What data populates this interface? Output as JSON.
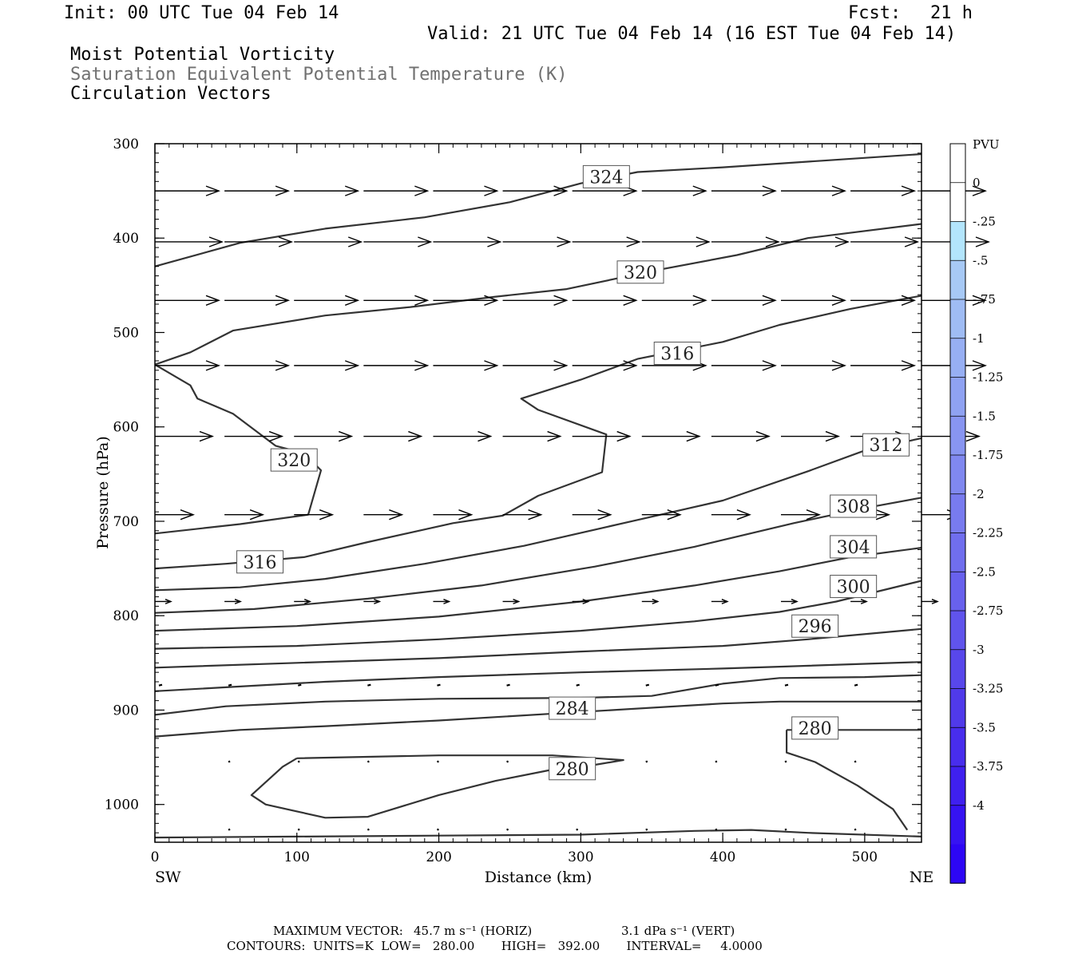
{
  "header": {
    "init": "Init: 00 UTC Tue 04 Feb 14",
    "fcst_label": "Fcst:",
    "fcst_value": "21 h",
    "valid": "Valid: 21 UTC Tue 04 Feb 14 (16 EST Tue 04 Feb 14)",
    "fields": [
      "Moist Potential Vorticity",
      "Saturation Equivalent Potential Temperature (K)",
      "Circulation Vectors"
    ]
  },
  "footer": {
    "max_vector_label": "MAXIMUM VECTOR:",
    "max_vector_horiz": "45.7 m s⁻¹ (HORIZ)",
    "max_vector_vert": "3.1 dPa s⁻¹ (VERT)",
    "contours_line": "CONTOURS:  UNITS=K  LOW=   280.00       HIGH=   392.00       INTERVAL=     4.0000"
  },
  "colors": {
    "contour": "#333333",
    "frame": "#000000",
    "subtitle_grey": "#707070",
    "colorbar": [
      "#ffffff",
      "#ffffff",
      "#b3e5fc",
      "#a7c9f5",
      "#9fbcf4",
      "#97aff3",
      "#8fa2f2",
      "#8895f1",
      "#8088f0",
      "#787bef",
      "#706eee",
      "#6861ed",
      "#6054ec",
      "#5847eb",
      "#503aea",
      "#482ded",
      "#3f20ef",
      "#3613f2",
      "#2d06f5"
    ]
  },
  "chart_data": {
    "type": "contour",
    "xlabel": "Distance (km)",
    "ylabel": "Pressure (hPa)",
    "xlim": [
      0,
      540
    ],
    "ylim": [
      1040,
      300
    ],
    "x_ticks": [
      0,
      100,
      200,
      300,
      400,
      500
    ],
    "y_ticks": [
      300,
      400,
      500,
      600,
      700,
      800,
      900,
      1000
    ],
    "x_end_labels": {
      "left": "SW",
      "right": "NE"
    },
    "colorbar": {
      "title": "PVU",
      "ticks": [
        "0",
        "-.25",
        "-.5",
        "-.75",
        "-1",
        "-1.25",
        "-1.5",
        "-1.75",
        "-2",
        "-2.25",
        "-2.5",
        "-2.75",
        "-3",
        "-3.25",
        "-3.5",
        "-3.75",
        "-4"
      ]
    },
    "contour_labels": [
      {
        "text": "324",
        "x": 318,
        "p": 335
      },
      {
        "text": "320",
        "x": 342,
        "p": 436
      },
      {
        "text": "316",
        "x": 368,
        "p": 522
      },
      {
        "text": "320",
        "x": 98,
        "p": 635
      },
      {
        "text": "312",
        "x": 515,
        "p": 619
      },
      {
        "text": "308",
        "x": 492,
        "p": 684
      },
      {
        "text": "316",
        "x": 74,
        "p": 743
      },
      {
        "text": "304",
        "x": 492,
        "p": 727
      },
      {
        "text": "300",
        "x": 492,
        "p": 769
      },
      {
        "text": "296",
        "x": 465,
        "p": 811
      },
      {
        "text": "284",
        "x": 294,
        "p": 898
      },
      {
        "text": "280",
        "x": 465,
        "p": 919
      },
      {
        "text": "280",
        "x": 294,
        "p": 962
      }
    ],
    "contours": [
      {
        "theta": 324,
        "points": [
          [
            0,
            430
          ],
          [
            60,
            405
          ],
          [
            120,
            390
          ],
          [
            190,
            378
          ],
          [
            250,
            362
          ],
          [
            300,
            342
          ],
          [
            340,
            330
          ],
          [
            400,
            325
          ],
          [
            470,
            318
          ],
          [
            540,
            311
          ]
        ]
      },
      {
        "theta": 320,
        "points": [
          [
            0,
            534
          ],
          [
            25,
            521
          ],
          [
            55,
            498
          ],
          [
            120,
            482
          ],
          [
            180,
            473
          ],
          [
            240,
            462
          ],
          [
            290,
            454
          ],
          [
            350,
            435
          ],
          [
            410,
            418
          ],
          [
            460,
            400
          ],
          [
            540,
            385
          ]
        ]
      },
      {
        "theta": 320,
        "points": [
          [
            0,
            534
          ],
          [
            25,
            556
          ],
          [
            30,
            570
          ],
          [
            55,
            586
          ],
          [
            85,
            620
          ],
          [
            105,
            628
          ],
          [
            117,
            646
          ],
          [
            108,
            693
          ],
          [
            60,
            703
          ],
          [
            0,
            713
          ]
        ]
      },
      {
        "theta": 316,
        "points": [
          [
            0,
            750
          ],
          [
            50,
            745
          ],
          [
            105,
            738
          ],
          [
            150,
            722
          ],
          [
            210,
            702
          ],
          [
            245,
            694
          ],
          [
            270,
            673
          ],
          [
            315,
            648
          ],
          [
            318,
            608
          ],
          [
            270,
            582
          ],
          [
            258,
            570
          ],
          [
            300,
            550
          ],
          [
            340,
            528
          ],
          [
            360,
            522
          ],
          [
            400,
            510
          ],
          [
            440,
            492
          ],
          [
            490,
            475
          ],
          [
            540,
            461
          ]
        ]
      },
      {
        "theta": 312,
        "points": [
          [
            0,
            773
          ],
          [
            60,
            770
          ],
          [
            120,
            761
          ],
          [
            190,
            745
          ],
          [
            260,
            726
          ],
          [
            330,
            702
          ],
          [
            400,
            678
          ],
          [
            460,
            647
          ],
          [
            500,
            625
          ],
          [
            540,
            612
          ]
        ]
      },
      {
        "theta": 308,
        "points": [
          [
            0,
            797
          ],
          [
            70,
            793
          ],
          [
            150,
            782
          ],
          [
            230,
            768
          ],
          [
            310,
            748
          ],
          [
            380,
            727
          ],
          [
            450,
            702
          ],
          [
            500,
            686
          ],
          [
            540,
            675
          ]
        ]
      },
      {
        "theta": 304,
        "points": [
          [
            0,
            816
          ],
          [
            100,
            811
          ],
          [
            200,
            801
          ],
          [
            300,
            785
          ],
          [
            380,
            768
          ],
          [
            440,
            753
          ],
          [
            490,
            738
          ],
          [
            540,
            728
          ]
        ]
      },
      {
        "theta": 300,
        "points": [
          [
            0,
            835
          ],
          [
            100,
            832
          ],
          [
            200,
            825
          ],
          [
            300,
            816
          ],
          [
            380,
            806
          ],
          [
            440,
            796
          ],
          [
            480,
            785
          ],
          [
            540,
            763
          ]
        ]
      },
      {
        "theta": 296,
        "points": [
          [
            0,
            855
          ],
          [
            100,
            850
          ],
          [
            200,
            845
          ],
          [
            300,
            838
          ],
          [
            400,
            832
          ],
          [
            460,
            825
          ],
          [
            540,
            814
          ]
        ]
      },
      {
        "theta": 292,
        "points": [
          [
            0,
            880
          ],
          [
            60,
            875
          ],
          [
            120,
            870
          ],
          [
            200,
            865
          ],
          [
            300,
            860
          ],
          [
            400,
            856
          ],
          [
            440,
            854
          ],
          [
            540,
            849
          ]
        ]
      },
      {
        "theta": 288,
        "points": [
          [
            0,
            905
          ],
          [
            50,
            896
          ],
          [
            120,
            891
          ],
          [
            200,
            888
          ],
          [
            300,
            887
          ],
          [
            350,
            885
          ],
          [
            400,
            872
          ],
          [
            440,
            866
          ],
          [
            500,
            865
          ],
          [
            540,
            863
          ]
        ]
      },
      {
        "theta": 284,
        "points": [
          [
            0,
            928
          ],
          [
            60,
            921
          ],
          [
            120,
            917
          ],
          [
            200,
            911
          ],
          [
            300,
            902
          ],
          [
            400,
            893
          ],
          [
            440,
            891
          ],
          [
            540,
            891
          ]
        ]
      },
      {
        "theta": 280,
        "points": [
          [
            100,
            951
          ],
          [
            200,
            948
          ],
          [
            280,
            948
          ],
          [
            330,
            953
          ],
          [
            310,
            958
          ],
          [
            280,
            963
          ],
          [
            240,
            975
          ],
          [
            200,
            990
          ],
          [
            150,
            1013
          ],
          [
            120,
            1014
          ],
          [
            78,
            1000
          ],
          [
            68,
            990
          ],
          [
            90,
            960
          ],
          [
            100,
            951
          ]
        ]
      },
      {
        "theta": 280,
        "points": [
          [
            445,
            921
          ],
          [
            450,
            921
          ],
          [
            540,
            921
          ]
        ]
      },
      {
        "theta": 280,
        "points": [
          [
            445,
            921
          ],
          [
            445,
            945
          ],
          [
            465,
            955
          ],
          [
            495,
            980
          ],
          [
            520,
            1005
          ],
          [
            530,
            1027
          ]
        ]
      },
      {
        "theta": 280,
        "points": [
          [
            0,
            1035
          ],
          [
            100,
            1034
          ],
          [
            200,
            1033
          ],
          [
            300,
            1032
          ],
          [
            380,
            1028
          ],
          [
            420,
            1027
          ],
          [
            460,
            1030
          ],
          [
            540,
            1034
          ]
        ]
      }
    ],
    "vectors": [
      {
        "p": 350,
        "u": 40,
        "x": [
          0,
          49,
          98,
          147,
          196,
          245,
          294,
          343,
          392,
          441,
          490,
          540
        ]
      },
      {
        "p": 404,
        "u": 42,
        "x": [
          0,
          49,
          98,
          147,
          196,
          245,
          294,
          343,
          392,
          441,
          490,
          540
        ]
      },
      {
        "p": 466,
        "u": 40,
        "x": [
          0,
          49,
          98,
          147,
          196,
          245,
          294,
          343,
          392,
          441,
          490,
          540
        ]
      },
      {
        "p": 535,
        "u": 40,
        "x": [
          0,
          49,
          98,
          147,
          196,
          245,
          294,
          343,
          392,
          441,
          490,
          540
        ]
      },
      {
        "p": 610,
        "u": 36,
        "x": [
          0,
          49,
          98,
          147,
          196,
          245,
          294,
          343,
          392,
          441,
          490,
          540
        ]
      },
      {
        "p": 693,
        "u": 24,
        "x": [
          0,
          49,
          98,
          147,
          196,
          245,
          294,
          343,
          392,
          441,
          490,
          540
        ]
      },
      {
        "p": 785,
        "u": 10,
        "x": [
          0,
          49,
          98,
          147,
          196,
          245,
          294,
          343,
          392,
          441,
          490,
          540
        ]
      },
      {
        "p": 874,
        "u": 2,
        "x": [
          0,
          49,
          98,
          147,
          196,
          245,
          294,
          343,
          392,
          441,
          490
        ]
      },
      {
        "p": 955,
        "u": 1,
        "x": [
          49,
          98,
          147,
          196,
          245,
          294,
          343,
          392,
          441,
          490
        ]
      },
      {
        "p": 1027,
        "u": 1,
        "x": [
          49,
          98,
          147,
          196,
          245,
          294,
          343,
          392,
          441,
          490
        ]
      }
    ]
  }
}
